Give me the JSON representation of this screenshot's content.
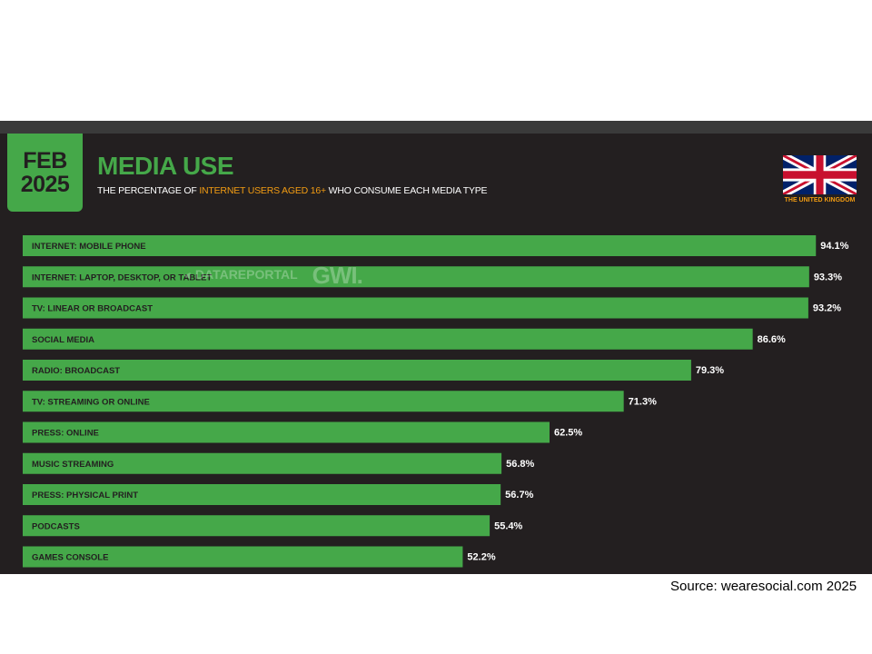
{
  "header": {
    "date_month": "FEB",
    "date_year": "2025",
    "title": "MEDIA USE",
    "subtitle_pre": "THE PERCENTAGE OF ",
    "subtitle_highlight": "INTERNET USERS AGED 16+",
    "subtitle_post": " WHO CONSUME EACH MEDIA TYPE",
    "country_caption": "THE UNITED KINGDOM"
  },
  "watermark": {
    "brand": "DATAREPORTAL",
    "partner": "GWI."
  },
  "source": "Source: wearesocial.com 2025",
  "colors": {
    "background": "#231f20",
    "bar": "#45a849",
    "accent": "#f39c12",
    "text": "#ffffff"
  },
  "chart_data": {
    "type": "bar",
    "orientation": "horizontal",
    "title": "MEDIA USE",
    "categories": [
      "INTERNET: MOBILE PHONE",
      "INTERNET: LAPTOP, DESKTOP, OR TABLET",
      "TV: LINEAR OR BROADCAST",
      "SOCIAL MEDIA",
      "RADIO: BROADCAST",
      "TV: STREAMING OR ONLINE",
      "PRESS: ONLINE",
      "MUSIC STREAMING",
      "PRESS: PHYSICAL PRINT",
      "PODCASTS",
      "GAMES CONSOLE"
    ],
    "values": [
      94.1,
      93.3,
      93.2,
      86.6,
      79.3,
      71.3,
      62.5,
      56.8,
      56.7,
      55.4,
      52.2
    ],
    "value_labels": [
      "94.1%",
      "93.3%",
      "93.2%",
      "86.6%",
      "79.3%",
      "71.3%",
      "62.5%",
      "56.8%",
      "56.7%",
      "55.4%",
      "52.2%"
    ],
    "unit": "%",
    "xlim": [
      0,
      100
    ],
    "grid": false,
    "legend": "none"
  }
}
